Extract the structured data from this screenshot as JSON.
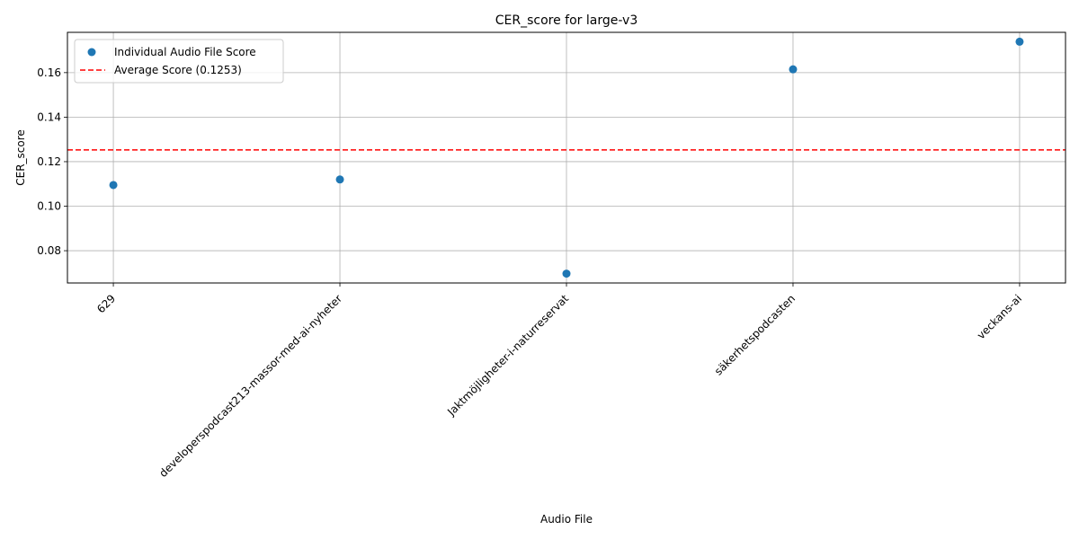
{
  "chart_data": {
    "type": "scatter",
    "title": "CER_score for large-v3",
    "xlabel": "Audio File",
    "ylabel": "CER_score",
    "categories": [
      "629",
      "developerspodcast213-massor-med-ai-nyheter",
      "Jaktmöjligheter-i-naturreservat",
      "säkerhetspodcasten",
      "veckans-ai"
    ],
    "series": [
      {
        "name": "Individual Audio File Score",
        "values": [
          0.1095,
          0.112,
          0.0697,
          0.1615,
          0.1739
        ],
        "color": "#1f77b4"
      }
    ],
    "average": {
      "name": "Average Score (0.1253)",
      "value": 0.1253,
      "color": "#ff0000",
      "style": "dashed"
    },
    "ylim": [
      0.0655,
      0.1781
    ],
    "yticks": [
      0.08,
      0.1,
      0.12,
      0.14,
      0.16
    ],
    "ytick_labels": [
      "0.08",
      "0.10",
      "0.12",
      "0.14",
      "0.16"
    ],
    "grid": true,
    "legend_position": "top-left"
  }
}
